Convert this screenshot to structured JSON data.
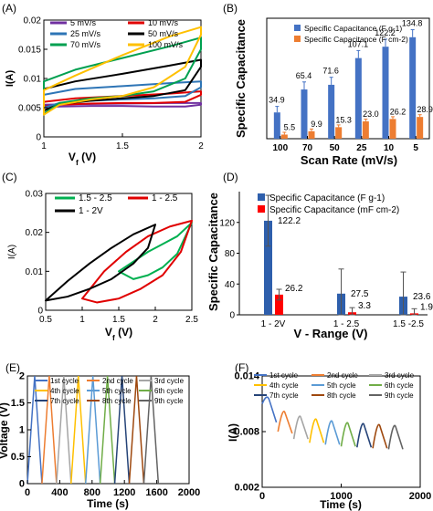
{
  "chart_data": [
    {
      "panel": "(A)",
      "type": "line",
      "xlabel": "V",
      "xlabel_sub": "f",
      "xlabel_unit": " (V)",
      "ylabel": "I(A)",
      "xlim": [
        1,
        2
      ],
      "ylim": [
        0,
        0.02
      ],
      "x_ticks": [
        1,
        1.5,
        2
      ],
      "x_tick_labels": [
        "1",
        "1.5",
        "2"
      ],
      "y_ticks": [
        0,
        0.005,
        0.01,
        0.015,
        0.02
      ],
      "y_tick_labels": [
        "0",
        "0.005",
        "0.01",
        "0.015",
        "0.02"
      ],
      "legend_position": "top",
      "series": [
        {
          "name": "5 mV/s",
          "color": "#7030a0",
          "loop": {
            "lower": [
              [
                1,
                0.005
              ],
              [
                1.1,
                0.0052
              ],
              [
                1.3,
                0.0053
              ],
              [
                1.5,
                0.0053
              ],
              [
                1.7,
                0.0052
              ],
              [
                1.9,
                0.0052
              ],
              [
                2,
                0.0055
              ]
            ],
            "upper": [
              [
                1,
                0.0055
              ],
              [
                1.2,
                0.0056
              ],
              [
                1.5,
                0.0057
              ],
              [
                1.8,
                0.0058
              ],
              [
                2,
                0.0058
              ]
            ]
          }
        },
        {
          "name": "10 mV/s",
          "color": "#e00000",
          "loop": {
            "lower": [
              [
                1,
                0.0052
              ],
              [
                1.1,
                0.0055
              ],
              [
                1.3,
                0.0057
              ],
              [
                1.5,
                0.0058
              ],
              [
                1.7,
                0.0058
              ],
              [
                1.9,
                0.006
              ],
              [
                2,
                0.0072
              ]
            ],
            "upper": [
              [
                1,
                0.006
              ],
              [
                1.2,
                0.0066
              ],
              [
                1.5,
                0.007
              ],
              [
                1.8,
                0.0074
              ],
              [
                2,
                0.0078
              ]
            ]
          }
        },
        {
          "name": "25 mV/s",
          "color": "#2e75b6",
          "loop": {
            "lower": [
              [
                1,
                0.005
              ],
              [
                1.1,
                0.0058
              ],
              [
                1.3,
                0.0062
              ],
              [
                1.5,
                0.0064
              ],
              [
                1.7,
                0.0066
              ],
              [
                1.9,
                0.007
              ],
              [
                2,
                0.0085
              ]
            ],
            "upper": [
              [
                1,
                0.0072
              ],
              [
                1.2,
                0.0082
              ],
              [
                1.5,
                0.0087
              ],
              [
                1.8,
                0.0092
              ],
              [
                2,
                0.0095
              ]
            ]
          }
        },
        {
          "name": "50 mV/s",
          "color": "#000000",
          "loop": {
            "lower": [
              [
                1,
                0.0045
              ],
              [
                1.1,
                0.0056
              ],
              [
                1.3,
                0.0062
              ],
              [
                1.5,
                0.0066
              ],
              [
                1.7,
                0.007
              ],
              [
                1.9,
                0.008
              ],
              [
                2,
                0.012
              ]
            ],
            "upper": [
              [
                1,
                0.0082
              ],
              [
                1.2,
                0.0095
              ],
              [
                1.5,
                0.0108
              ],
              [
                1.8,
                0.0122
              ],
              [
                2,
                0.0132
              ]
            ]
          }
        },
        {
          "name": "70 mV/s",
          "color": "#00a050",
          "loop": {
            "lower": [
              [
                1,
                0.004
              ],
              [
                1.1,
                0.0058
              ],
              [
                1.3,
                0.0066
              ],
              [
                1.5,
                0.007
              ],
              [
                1.7,
                0.0078
              ],
              [
                1.9,
                0.01
              ],
              [
                2,
                0.015
              ]
            ],
            "upper": [
              [
                1,
                0.0095
              ],
              [
                1.2,
                0.0115
              ],
              [
                1.5,
                0.0135
              ],
              [
                1.8,
                0.0155
              ],
              [
                2,
                0.017
              ]
            ]
          }
        },
        {
          "name": "100 mV/s",
          "color": "#ffc000",
          "loop": {
            "lower": [
              [
                1,
                0.0038
              ],
              [
                1.1,
                0.0055
              ],
              [
                1.3,
                0.0064
              ],
              [
                1.5,
                0.007
              ],
              [
                1.7,
                0.0085
              ],
              [
                1.9,
                0.012
              ],
              [
                2,
                0.0175
              ]
            ],
            "upper": [
              [
                1,
                0.008
              ],
              [
                1.2,
                0.0105
              ],
              [
                1.5,
                0.014
              ],
              [
                1.8,
                0.0172
              ],
              [
                2,
                0.0188
              ]
            ]
          }
        }
      ]
    },
    {
      "panel": "(B)",
      "type": "bar",
      "xlabel": "Scan Rate (mV/s)",
      "ylabel": "Specific Capacitance",
      "categories": [
        "100",
        "70",
        "50",
        "25",
        "10",
        "5"
      ],
      "ylim": [
        0,
        160
      ],
      "legend_position": "top-left",
      "series": [
        {
          "name": "Specific Capacitance (F g-1)",
          "color": "#4472c4",
          "values": [
            34.9,
            65.4,
            71.6,
            107.1,
            122.2,
            134.8
          ],
          "labels": [
            "34.9",
            "65.4",
            "71.6",
            "107.1",
            "122.2",
            "134.8"
          ],
          "errors": [
            8,
            10,
            10,
            10,
            10,
            10
          ]
        },
        {
          "name": "Specific Capacitance  (F cm-2)",
          "color": "#ed7d31",
          "values": [
            5.5,
            9.9,
            15.3,
            23.0,
            26.2,
            28.9
          ],
          "labels": [
            "5.5",
            "9.9",
            "15.3",
            "23.0",
            "26.2",
            "28.9"
          ],
          "errors": [
            3,
            3,
            3,
            3,
            3,
            3
          ]
        }
      ]
    },
    {
      "panel": "(C)",
      "type": "line",
      "xlabel": "V",
      "xlabel_sub": "f",
      "xlabel_unit": " (V)",
      "ylabel": "I(A)",
      "xlim": [
        0.5,
        2.5
      ],
      "ylim": [
        0,
        0.03
      ],
      "x_ticks": [
        0.5,
        1,
        1.5,
        2,
        2.5
      ],
      "x_tick_labels": [
        "0.5",
        "1",
        "1.5",
        "2",
        "2.5"
      ],
      "y_ticks": [
        0,
        0.01,
        0.02,
        0.03
      ],
      "y_tick_labels": [
        "0",
        "0.01",
        "0.02",
        "0.03"
      ],
      "legend_position": "top-left",
      "series": [
        {
          "name": "1.5 - 2.5",
          "color": "#00b050",
          "loop": {
            "lower": [
              [
                1.5,
                0.01
              ],
              [
                1.7,
                0.008
              ],
              [
                1.9,
                0.009
              ],
              [
                2.1,
                0.011
              ],
              [
                2.3,
                0.0145
              ],
              [
                2.5,
                0.0225
              ]
            ],
            "upper": [
              [
                1.5,
                0.01
              ],
              [
                1.7,
                0.0125
              ],
              [
                1.9,
                0.015
              ],
              [
                2.1,
                0.017
              ],
              [
                2.3,
                0.019
              ],
              [
                2.5,
                0.0225
              ]
            ]
          }
        },
        {
          "name": "1 - 2.5",
          "color": "#e00000",
          "loop": {
            "lower": [
              [
                1,
                0.003
              ],
              [
                1.2,
                0.002
              ],
              [
                1.5,
                0.003
              ],
              [
                1.8,
                0.0055
              ],
              [
                2.1,
                0.009
              ],
              [
                2.35,
                0.015
              ],
              [
                2.5,
                0.023
              ]
            ],
            "upper": [
              [
                1,
                0.003
              ],
              [
                1.3,
                0.01
              ],
              [
                1.6,
                0.015
              ],
              [
                1.9,
                0.019
              ],
              [
                2.2,
                0.0215
              ],
              [
                2.5,
                0.023
              ]
            ]
          }
        },
        {
          "name": "1 - 2V",
          "color": "#000000",
          "loop": {
            "lower": [
              [
                0.5,
                0.0025
              ],
              [
                0.8,
                0.0035
              ],
              [
                1.1,
                0.0055
              ],
              [
                1.4,
                0.008
              ],
              [
                1.7,
                0.012
              ],
              [
                1.9,
                0.016
              ],
              [
                2,
                0.022
              ]
            ],
            "upper": [
              [
                0.5,
                0.0025
              ],
              [
                0.8,
                0.0075
              ],
              [
                1.1,
                0.012
              ],
              [
                1.4,
                0.016
              ],
              [
                1.7,
                0.0195
              ],
              [
                2,
                0.022
              ]
            ]
          }
        }
      ]
    },
    {
      "panel": "(D)",
      "type": "bar",
      "xlabel": "V - Range (V)",
      "ylabel": "Specific Capacitance",
      "categories": [
        "1 - 2V",
        "1 - 2.5",
        "1.5 -2.5"
      ],
      "ylim": [
        0,
        160
      ],
      "y_ticks": [
        0,
        40,
        80,
        120
      ],
      "legend_position": "top",
      "series": [
        {
          "name": "Specific Capacitance (F g-1)",
          "color": "#2e5fac",
          "values": [
            122.2,
            27.5,
            23.6
          ],
          "labels": [
            "122.2",
            "27.5",
            "23.6"
          ],
          "errors": [
            33,
            32,
            32
          ]
        },
        {
          "name": "Specific Capacitance  (mF cm-2)",
          "color": "#ff0000",
          "values": [
            26.2,
            3.3,
            1.9
          ],
          "labels": [
            "26.2",
            "3.3",
            "1.9"
          ],
          "errors": [
            7,
            6,
            6
          ]
        }
      ]
    },
    {
      "panel": "(E)",
      "type": "line",
      "xlabel": "Time (s)",
      "ylabel": "Voltage (V)",
      "xlim": [
        0,
        2000
      ],
      "ylim": [
        0,
        2
      ],
      "x_ticks": [
        0,
        400,
        800,
        1200,
        1600,
        2000
      ],
      "y_ticks": [
        0,
        0.5,
        1,
        1.5,
        2
      ],
      "y_tick_labels": [
        "0",
        "0.5",
        "1",
        "1.5",
        "2"
      ],
      "legend_position": "top",
      "cycle_period": 180,
      "cycle_peak": 2,
      "series": [
        {
          "name": "1st cycle",
          "color": "#4472c4",
          "t0": 0
        },
        {
          "name": "2nd cycle",
          "color": "#ed7d31",
          "t0": 180
        },
        {
          "name": "3rd cycle",
          "color": "#a5a5a5",
          "t0": 360
        },
        {
          "name": "4th cycle",
          "color": "#ffc000",
          "t0": 540
        },
        {
          "name": "5th cycle",
          "color": "#5b9bd5",
          "t0": 720
        },
        {
          "name": "6th cycle",
          "color": "#70ad47",
          "t0": 900
        },
        {
          "name": "7th cycle",
          "color": "#264478",
          "t0": 1080
        },
        {
          "name": "8th cycle",
          "color": "#9e480e",
          "t0": 1260
        },
        {
          "name": "9th cycle",
          "color": "#636363",
          "t0": 1440
        }
      ]
    },
    {
      "panel": "(F)",
      "type": "line",
      "xlabel": "Time (s)",
      "ylabel": "I(A)",
      "xlim": [
        0,
        2000
      ],
      "ylim": [
        0.002,
        0.014
      ],
      "x_ticks": [
        0,
        1000,
        2000
      ],
      "y_ticks": [
        0.002,
        0.008,
        0.014
      ],
      "y_tick_labels": [
        "0.002",
        "0.008",
        "0.014"
      ],
      "legend_position": "top",
      "cycle_period": 200,
      "series": [
        {
          "name": "1st cycle",
          "color": "#4472c4",
          "t0": 0,
          "start": 0.011,
          "peak": 0.0122,
          "end": 0.009
        },
        {
          "name": "2nd cycle",
          "color": "#ed7d31",
          "t0": 200,
          "start": 0.008,
          "peak": 0.0108,
          "end": 0.0078
        },
        {
          "name": "3rd cycle",
          "color": "#a5a5a5",
          "t0": 400,
          "start": 0.0072,
          "peak": 0.0103,
          "end": 0.0072
        },
        {
          "name": "4th cycle",
          "color": "#ffc000",
          "t0": 600,
          "start": 0.0068,
          "peak": 0.01,
          "end": 0.0068
        },
        {
          "name": "5th cycle",
          "color": "#5b9bd5",
          "t0": 800,
          "start": 0.0066,
          "peak": 0.0098,
          "end": 0.0066
        },
        {
          "name": "6th cycle",
          "color": "#70ad47",
          "t0": 1000,
          "start": 0.0064,
          "peak": 0.0096,
          "end": 0.0064
        },
        {
          "name": "7th cycle",
          "color": "#264478",
          "t0": 1200,
          "start": 0.0063,
          "peak": 0.0095,
          "end": 0.0063
        },
        {
          "name": "8th cycle",
          "color": "#9e480e",
          "t0": 1400,
          "start": 0.0062,
          "peak": 0.0094,
          "end": 0.0062
        },
        {
          "name": "9th cycle",
          "color": "#636363",
          "t0": 1600,
          "start": 0.0061,
          "peak": 0.0093,
          "end": 0.0061
        }
      ]
    }
  ]
}
